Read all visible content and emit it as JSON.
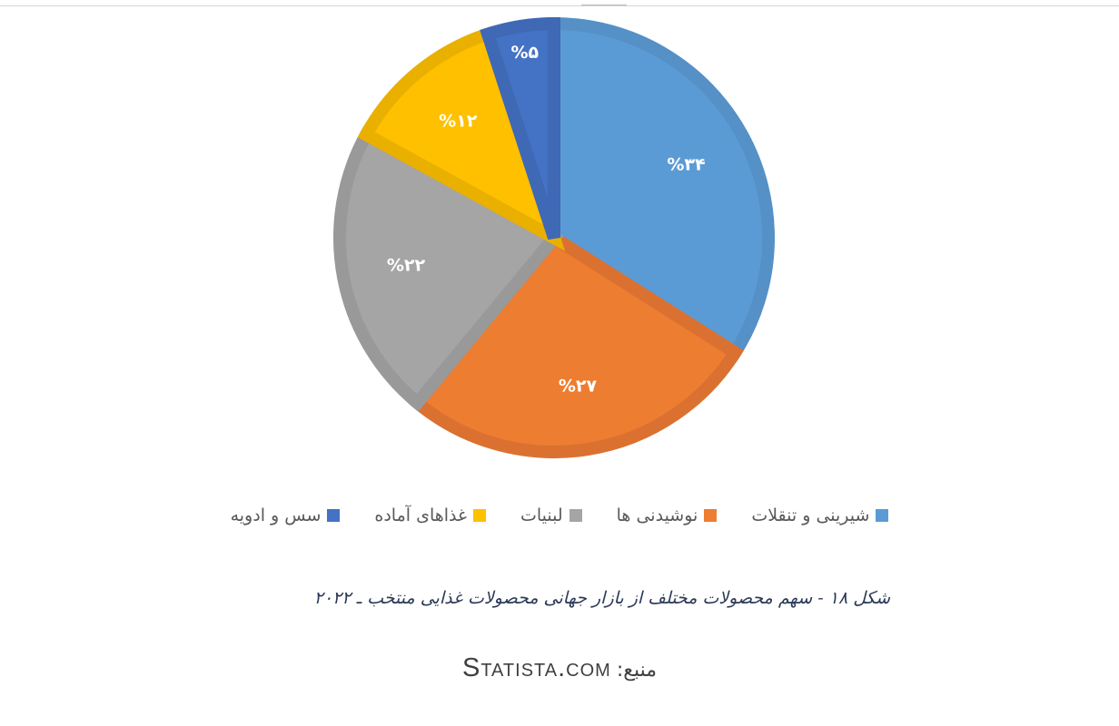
{
  "chart_data": {
    "type": "pie",
    "categories": [
      "شیرینی و تنقلات",
      "نوشیدنی ها",
      "لبنیات",
      "غذاهای آماده",
      "سس و ادویه"
    ],
    "values": [
      34,
      27,
      22,
      12,
      5
    ],
    "data_labels": [
      "%۳۴",
      "%۲۷",
      "%۲۲",
      "%۱۲",
      "%۵"
    ],
    "colors": [
      "#5b9bd5",
      "#ed7d31",
      "#a5a5a5",
      "#ffc000",
      "#4472c4"
    ],
    "border_colors": [
      "#5590c7",
      "#db7130",
      "#999999",
      "#e9b000",
      "#3f68b5"
    ],
    "legend_position": "bottom",
    "start_angle": "12 o'clock",
    "direction": "clockwise"
  },
  "caption": "شکل ۱۸ - سهم محصولات مختلف از بازار جهانی محصولات غذایی منتخب ـ ۲۰۲۲",
  "source": {
    "label": "منبع:",
    "name": "Statista.com"
  }
}
